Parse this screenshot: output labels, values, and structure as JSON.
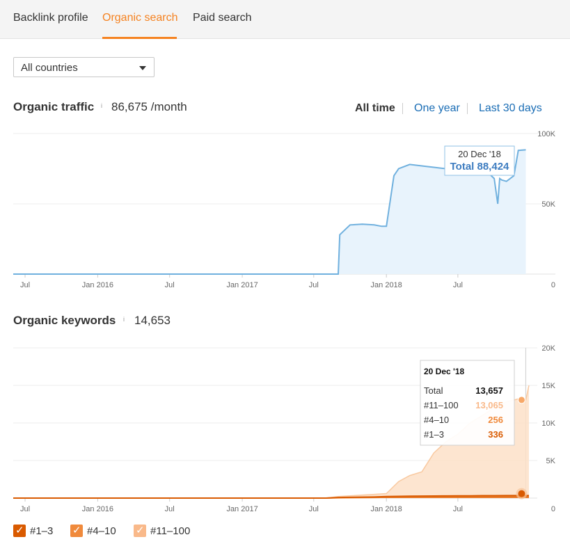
{
  "tabs": [
    {
      "label": "Backlink profile",
      "active": false
    },
    {
      "label": "Organic search",
      "active": true
    },
    {
      "label": "Paid search",
      "active": false
    }
  ],
  "country_select": {
    "value": "All countries"
  },
  "traffic": {
    "title": "Organic traffic",
    "info": "i",
    "value": "86,675 /month",
    "ranges": [
      {
        "label": "All time",
        "active": true
      },
      {
        "label": "One year",
        "active": false
      },
      {
        "label": "Last 30 days",
        "active": false
      }
    ]
  },
  "keywords": {
    "title": "Organic keywords",
    "info": "i",
    "value": "14,653"
  },
  "chart_data": [
    {
      "type": "area",
      "title": "Organic traffic",
      "x_tick_labels": [
        "Jul",
        "Jan 2016",
        "Jul",
        "Jan 2017",
        "Jul",
        "Jan 2018",
        "Jul"
      ],
      "y_tick_labels": [
        "100K",
        "50K",
        "0"
      ],
      "ylim": [
        0,
        100000
      ],
      "grid": true,
      "series": [
        {
          "color": "#6fb0de",
          "x": [
            "2015-06",
            "2015-09",
            "2016-01",
            "2016-04",
            "2016-07",
            "2016-10",
            "2017-01",
            "2017-04",
            "2017-07",
            "2017-09",
            "2017-09-05",
            "2017-10",
            "2017-11",
            "2017-12",
            "2017-12-20",
            "2018-01",
            "2018-01-20",
            "2018-02",
            "2018-03",
            "2018-04",
            "2018-05",
            "2018-06",
            "2018-07",
            "2018-08",
            "2018-09",
            "2018-10",
            "2018-10-10",
            "2018-10-15",
            "2018-10-20",
            "2018-11",
            "2018-11-20",
            "2018-12",
            "2018-12-20"
          ],
          "values": [
            0,
            0,
            0,
            0,
            0,
            0,
            0,
            0,
            0,
            0,
            28000,
            35000,
            35500,
            35000,
            34000,
            34000,
            70000,
            75000,
            78000,
            77000,
            76000,
            75000,
            76000,
            77000,
            76000,
            68000,
            50000,
            68000,
            67000,
            66000,
            70000,
            88000,
            88424
          ]
        }
      ],
      "tooltip": {
        "date": "20 Dec '18",
        "label": "Total 88,424"
      }
    },
    {
      "type": "area",
      "title": "Organic keywords",
      "x_tick_labels": [
        "Jul",
        "Jan 2016",
        "Jul",
        "Jan 2017",
        "Jul",
        "Jan 2018",
        "Jul"
      ],
      "y_tick_labels": [
        "20K",
        "15K",
        "10K",
        "5K",
        "0"
      ],
      "ylim": [
        0,
        20000
      ],
      "grid": true,
      "x": [
        "2015-06",
        "2017-08",
        "2017-09",
        "2017-12",
        "2018-01",
        "2018-02",
        "2018-03",
        "2018-04",
        "2018-05",
        "2018-06",
        "2018-07",
        "2018-08",
        "2018-09",
        "2018-10",
        "2018-11",
        "2018-12",
        "2018-12-20",
        "2018-12-28"
      ],
      "series": [
        {
          "name": "#11–100",
          "color": "#f9c9a0",
          "values": [
            0,
            0,
            200,
            500,
            600,
            2200,
            3000,
            3500,
            6000,
            7500,
            8500,
            10000,
            11000,
            12000,
            12800,
            13200,
            13065,
            15000
          ]
        },
        {
          "name": "#4–10",
          "color": "#f08a3c",
          "values": [
            0,
            0,
            40,
            80,
            100,
            150,
            180,
            200,
            210,
            220,
            230,
            240,
            245,
            250,
            252,
            255,
            256,
            256
          ]
        },
        {
          "name": "#1–3",
          "color": "#d95a00",
          "values": [
            0,
            0,
            80,
            150,
            200,
            230,
            250,
            270,
            280,
            290,
            300,
            310,
            320,
            325,
            330,
            335,
            336,
            336
          ]
        }
      ],
      "tooltip": {
        "date": "20 Dec '18",
        "rows": [
          {
            "label": "Total",
            "value": "13,657",
            "color": "#111111"
          },
          {
            "label": "#11–100",
            "value": "13,065",
            "color": "#f9b98a"
          },
          {
            "label": "#4–10",
            "value": "256",
            "color": "#f08a3c"
          },
          {
            "label": "#1–3",
            "value": "336",
            "color": "#d95a00"
          }
        ]
      }
    }
  ],
  "legend": [
    {
      "label": "#1–3",
      "color": "#d95a00",
      "checked": true
    },
    {
      "label": "#4–10",
      "color": "#f08a3c",
      "checked": true
    },
    {
      "label": "#11–100",
      "color": "#f9b98a",
      "checked": true
    }
  ],
  "colors": {
    "accent": "#f58220",
    "link": "#1a6db5",
    "traffic_line": "#6fb0de",
    "traffic_fill": "#e8f3fc"
  }
}
